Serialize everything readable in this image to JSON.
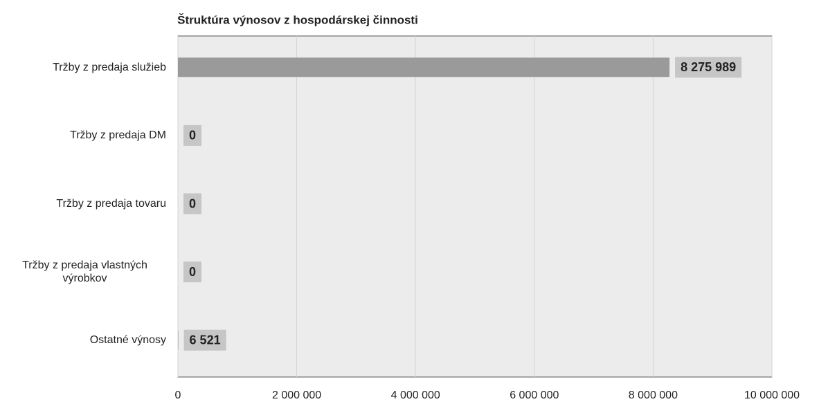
{
  "chart_data": {
    "type": "hbar",
    "title": "Štruktúra výnosov z hospodárskej činnosti",
    "categories": [
      "Tržby z predaja služieb",
      "Tržby z predaja DM",
      "Tržby z predaja tovaru",
      "Tržby z predaja vlastných výrobkov",
      "Ostatné výnosy"
    ],
    "values": [
      8275989,
      0,
      0,
      0,
      6521
    ],
    "value_labels": [
      "8 275 989",
      "0",
      "0",
      "0",
      "6 521"
    ],
    "color": "#9a9a9a",
    "xlim": [
      0,
      10000000
    ],
    "xticks": [
      0,
      {
        "value": 2000000,
        "label": "2 000 000"
      },
      {
        "value": 4000000,
        "label": "4 000 000"
      },
      {
        "value": 6000000,
        "label": "6 000 000"
      },
      {
        "value": 8000000,
        "label": "8 000 000"
      },
      {
        "value": 10000000,
        "label": "10 000 000"
      }
    ],
    "grid": true
  }
}
